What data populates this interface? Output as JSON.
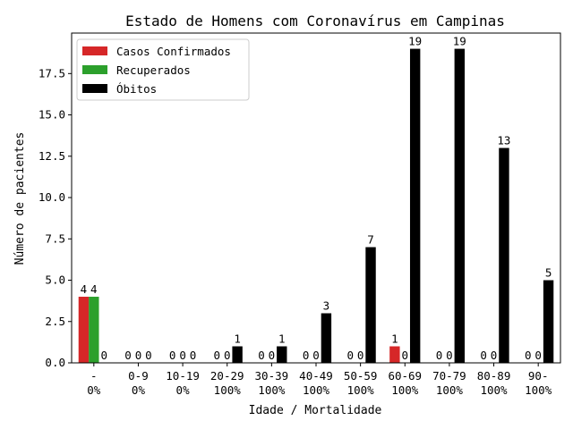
{
  "chart_data": {
    "type": "bar",
    "title": "Estado de Homens com Coronavírus em Campinas",
    "xlabel": "Idade / Mortalidade",
    "ylabel": "Número de pacientes",
    "ylim": [
      0,
      19.95
    ],
    "yticks": [
      "0.0",
      "2.5",
      "5.0",
      "7.5",
      "10.0",
      "12.5",
      "15.0",
      "17.5"
    ],
    "grid": false,
    "legend_position": "top-left",
    "categories": [
      {
        "age": "-",
        "mortality": "0%"
      },
      {
        "age": "0-9",
        "mortality": "0%"
      },
      {
        "age": "10-19",
        "mortality": "0%"
      },
      {
        "age": "20-29",
        "mortality": "100%"
      },
      {
        "age": "30-39",
        "mortality": "100%"
      },
      {
        "age": "40-49",
        "mortality": "100%"
      },
      {
        "age": "50-59",
        "mortality": "100%"
      },
      {
        "age": "60-69",
        "mortality": "100%"
      },
      {
        "age": "70-79",
        "mortality": "100%"
      },
      {
        "age": "80-89",
        "mortality": "100%"
      },
      {
        "age": "90-",
        "mortality": "100%"
      }
    ],
    "series": [
      {
        "name": "Casos Confirmados",
        "color": "#d62728",
        "values": [
          4,
          0,
          0,
          0,
          0,
          0,
          0,
          1,
          0,
          0,
          0
        ]
      },
      {
        "name": "Recuperados",
        "color": "#2ca02c",
        "values": [
          4,
          0,
          0,
          0,
          0,
          0,
          0,
          0,
          0,
          0,
          0
        ]
      },
      {
        "name": "Óbitos",
        "color": "#000000",
        "values": [
          0,
          0,
          0,
          1,
          1,
          3,
          7,
          19,
          19,
          13,
          5
        ]
      }
    ]
  }
}
